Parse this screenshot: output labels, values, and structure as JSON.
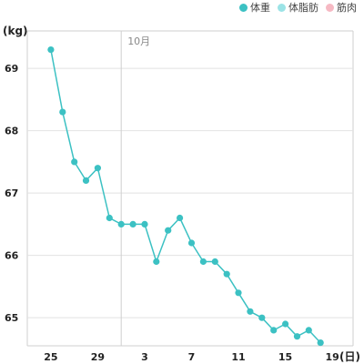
{
  "legend": [
    {
      "label": "体重",
      "color": "#3cc1c3"
    },
    {
      "label": "体脂肪",
      "color": "#9be3e6"
    },
    {
      "label": "筋肉",
      "color": "#f6b9c3"
    }
  ],
  "chart_data": {
    "type": "line",
    "y_unit_label": "(kg)",
    "x_unit_label": "(日)",
    "month_marker": {
      "label": "10月",
      "date": "10-01"
    },
    "grid": true,
    "legend_position": "top-right",
    "ylim": [
      64.55,
      69.6
    ],
    "y_ticks": [
      65,
      66,
      67,
      68,
      69
    ],
    "x_ticks": [
      {
        "label": "25",
        "date": "09-25"
      },
      {
        "label": "29",
        "date": "09-29"
      },
      {
        "label": "3",
        "date": "10-03"
      },
      {
        "label": "7",
        "date": "10-07"
      },
      {
        "label": "11",
        "date": "10-11"
      },
      {
        "label": "15",
        "date": "10-15"
      },
      {
        "label": "19",
        "date": "10-19"
      }
    ],
    "series": [
      {
        "name": "体重",
        "color": "#3cc1c3",
        "x": [
          "09-25",
          "09-26",
          "09-27",
          "09-28",
          "09-29",
          "09-30",
          "10-01",
          "10-02",
          "10-03",
          "10-04",
          "10-05",
          "10-06",
          "10-07",
          "10-08",
          "10-09",
          "10-10",
          "10-11",
          "10-12",
          "10-13",
          "10-14",
          "10-15",
          "10-16",
          "10-17",
          "10-18"
        ],
        "values": [
          69.3,
          68.3,
          67.5,
          67.2,
          67.4,
          66.6,
          66.5,
          66.5,
          66.5,
          65.9,
          66.4,
          66.6,
          66.2,
          65.9,
          65.9,
          65.7,
          65.4,
          65.1,
          65.0,
          64.8,
          64.9,
          64.7,
          64.8,
          64.6
        ]
      }
    ]
  }
}
